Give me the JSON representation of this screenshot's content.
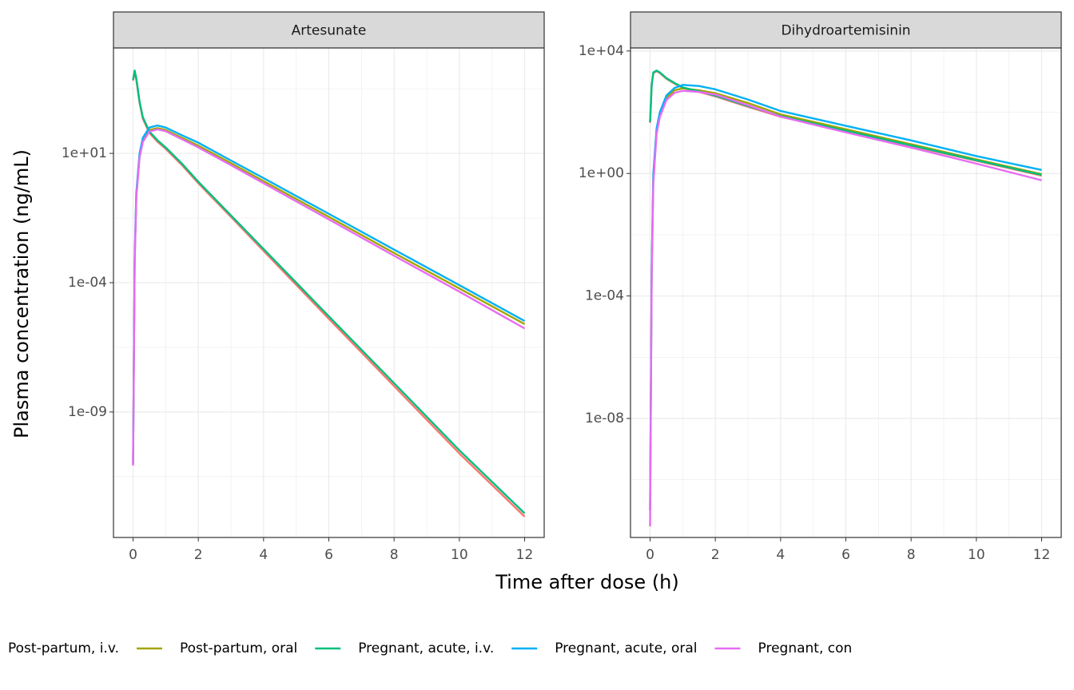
{
  "xlabel": "Time after dose (h)",
  "ylabel": "Plasma concentration (ng/mL)",
  "chart_data": [
    {
      "type": "line",
      "title": "Artesunate",
      "yscale": "log",
      "grid": true,
      "x": [
        0,
        0.05,
        0.1,
        0.2,
        0.3,
        0.5,
        0.75,
        1,
        1.5,
        2,
        3,
        4,
        6,
        8,
        10,
        12
      ],
      "xlim": [
        -0.6,
        12.6
      ],
      "xticks": [
        0,
        2,
        4,
        6,
        8,
        10,
        12
      ],
      "ylim": [
        1.4e-14,
        120000
      ],
      "yticks": [
        {
          "value": 1e-09,
          "label": "1e-09"
        },
        {
          "value": 0.0001,
          "label": "1e-04"
        },
        {
          "value": 10,
          "label": "1e+01"
        }
      ],
      "series": [
        {
          "name": "Post-partum, i.v.",
          "color": "#F8766D",
          "values": [
            6500,
            14000,
            7000,
            900,
            220,
            62,
            28,
            15,
            3.5,
            0.7,
            0.035,
            0.0017,
            4e-06,
            1e-08,
            2.5e-11,
            9e-14
          ]
        },
        {
          "name": "Post-partum, oral",
          "color": "#A3A500",
          "values": [
            1e-11,
            0.0008,
            0.25,
            8,
            32,
            80,
            95,
            80,
            40,
            20,
            4.2,
            0.85,
            0.035,
            0.0014,
            6e-05,
            2.5e-06
          ]
        },
        {
          "name": "Pregnant, acute, i.v.",
          "color": "#00BF7D",
          "values": [
            7000,
            16000,
            8000,
            1000,
            250,
            70,
            32,
            17,
            4,
            0.8,
            0.04,
            0.002,
            5e-06,
            1.3e-08,
            3.3e-11,
            1.2e-13
          ]
        },
        {
          "name": "Pregnant, acute, oral",
          "color": "#00B0F6",
          "values": [
            1e-11,
            0.001,
            0.3,
            10,
            40,
            100,
            120,
            100,
            50,
            26,
            5.3,
            1.1,
            0.046,
            0.0019,
            8e-05,
            3.3e-06
          ]
        },
        {
          "name": "Pregnant, con",
          "color": "#E76BF3",
          "values": [
            8.5e-12,
            0.0006,
            0.2,
            7,
            28,
            70,
            85,
            72,
            35,
            17,
            3.5,
            0.7,
            0.028,
            0.0011,
            4.5e-05,
            1.7e-06
          ]
        }
      ]
    },
    {
      "type": "line",
      "title": "Dihydroartemisinin",
      "yscale": "log",
      "grid": true,
      "x": [
        0,
        0.05,
        0.1,
        0.2,
        0.3,
        0.5,
        0.75,
        1,
        1.5,
        2,
        3,
        4,
        6,
        8,
        10,
        12
      ],
      "xlim": [
        -0.6,
        12.6
      ],
      "xticks": [
        0,
        2,
        4,
        6,
        8,
        10,
        12
      ],
      "ylim": [
        1.3e-12,
        12600
      ],
      "yticks": [
        {
          "value": 1e-08,
          "label": "1e-08"
        },
        {
          "value": 0.0001,
          "label": "1e-04"
        },
        {
          "value": 1,
          "label": "1e+00"
        },
        {
          "value": 10000,
          "label": "1e+04"
        }
      ],
      "series": [
        {
          "name": "Post-partum, i.v.",
          "color": "#F8766D",
          "values": [
            45,
            760,
            1900,
            2200,
            1900,
            1240,
            860,
            620,
            460,
            330,
            150,
            71,
            24,
            7.9,
            2.6,
            0.85
          ]
        },
        {
          "name": "Post-partum, oral",
          "color": "#A3A500",
          "values": [
            1e-11,
            0.0008,
            0.8,
            25,
            90,
            300,
            520,
            600,
            520,
            420,
            200,
            85,
            28,
            9,
            2.9,
            0.95
          ]
        },
        {
          "name": "Pregnant, acute, i.v.",
          "color": "#00BF7D",
          "values": [
            48,
            800,
            2000,
            2300,
            2000,
            1300,
            900,
            650,
            480,
            350,
            160,
            75,
            25,
            8.3,
            2.7,
            0.9
          ]
        },
        {
          "name": "Pregnant, acute, oral",
          "color": "#00B0F6",
          "values": [
            1e-11,
            0.001,
            1,
            30,
            100,
            350,
            620,
            780,
            720,
            560,
            260,
            110,
            36,
            12,
            3.7,
            1.3
          ]
        },
        {
          "name": "Pregnant, con",
          "color": "#E76BF3",
          "values": [
            3e-12,
            0.0005,
            0.5,
            20,
            70,
            250,
            430,
            500,
            460,
            380,
            170,
            72,
            22,
            7,
            2.1,
            0.6
          ]
        }
      ]
    }
  ]
}
